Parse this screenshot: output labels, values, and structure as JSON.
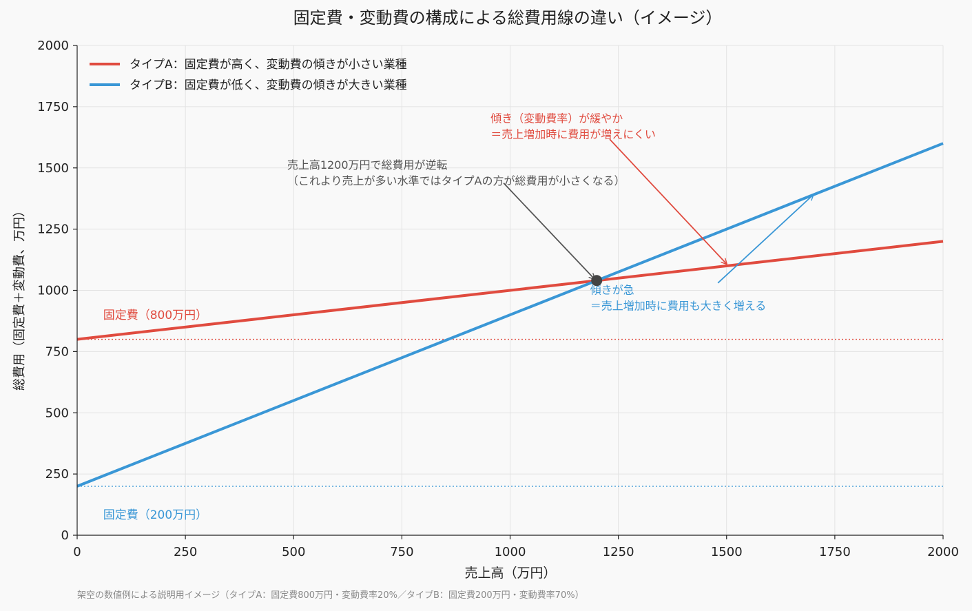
{
  "chart_data": {
    "type": "line",
    "title": "固定費・変動費の構成による総費用線の違い（イメージ）",
    "xlabel": "売上高（万円）",
    "ylabel": "総費用（固定費＋変動費、万円）",
    "xlim": [
      0,
      2000
    ],
    "ylim": [
      0,
      2000
    ],
    "xticks": [
      0,
      250,
      500,
      750,
      1000,
      1250,
      1500,
      1750,
      2000
    ],
    "yticks": [
      0,
      250,
      500,
      750,
      1000,
      1250,
      1500,
      1750,
      2000
    ],
    "grid": true,
    "legend_position": "top-left",
    "series": [
      {
        "name": "タイプA：固定費が高く、変動費の傾きが小さい業種",
        "color": "#e04b3f",
        "x": [
          0,
          2000
        ],
        "y": [
          800,
          1200
        ]
      },
      {
        "name": "タイプB：固定費が低く、変動費の傾きが大きい業種",
        "color": "#3a97d6",
        "x": [
          0,
          2000
        ],
        "y": [
          200,
          1600
        ]
      }
    ],
    "reference_lines": [
      {
        "y": 800,
        "color": "#e04b3f",
        "label": "固定費（800万円）",
        "label_at": [
          60,
          900
        ]
      },
      {
        "y": 200,
        "color": "#3a97d6",
        "label": "固定費（200万円）",
        "label_at": [
          60,
          85
        ]
      }
    ],
    "crossover_point": {
      "x": 1200,
      "y": 1040,
      "color": "#444444"
    },
    "annotations": [
      {
        "id": "crossover",
        "lines": [
          "売上高1200万円で総費用が逆転",
          "（これより売上が多い水準ではタイプAの方が総費用が小さくなる）"
        ],
        "color": "#555555",
        "text_at": [
          485,
          1496
        ],
        "arrow_from": [
          985,
          1438
        ],
        "arrow_to": [
          1195,
          1046
        ]
      },
      {
        "id": "slope-a",
        "lines": [
          "傾き（変動費率）が緩やか",
          "＝売上増加時に費用が増えにくい"
        ],
        "color": "#e04b3f",
        "text_at": [
          955,
          1686
        ],
        "arrow_from": [
          1230,
          1617
        ],
        "arrow_to": [
          1500,
          1108
        ]
      },
      {
        "id": "slope-b",
        "lines": [
          "傾きが急",
          "＝売上増加時に費用も大きく増える"
        ],
        "color": "#3a97d6",
        "text_at": [
          1185,
          986
        ],
        "arrow_from": [
          1480,
          1030
        ],
        "arrow_to": [
          1700,
          1390
        ]
      }
    ],
    "footnote": "架空の数値例による説明用イメージ（タイプA：固定費800万円・変動費率20%／タイプB：固定費200万円・変動費率70%）"
  }
}
